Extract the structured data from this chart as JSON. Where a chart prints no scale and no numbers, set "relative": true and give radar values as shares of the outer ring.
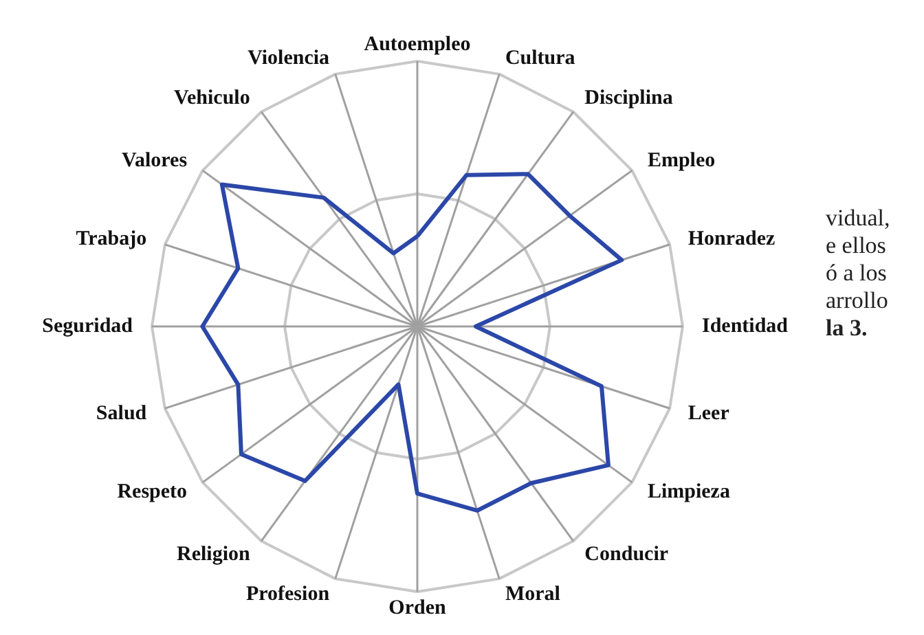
{
  "chart_data": {
    "type": "radar",
    "relative": true,
    "grid": true,
    "marker": "none",
    "line_style": "solid",
    "categories": [
      "Autoempleo",
      "Cultura",
      "Disciplina",
      "Empleo",
      "Honradez",
      "Identidad",
      "Leer",
      "Limpieza",
      "Conducir",
      "Moral",
      "Orden",
      "Profesion",
      "Religion",
      "Respeto",
      "Salud",
      "Seguridad",
      "Trabajo",
      "Valores",
      "Vehiculo",
      "Violencia"
    ],
    "series": [
      {
        "color": "#2b47a8",
        "values": [
          0.34,
          0.6,
          0.71,
          0.71,
          0.81,
          0.22,
          0.73,
          0.89,
          0.73,
          0.73,
          0.63,
          0.23,
          0.72,
          0.82,
          0.71,
          0.81,
          0.71,
          0.91,
          0.6,
          0.29
        ]
      }
    ],
    "annotations": [
      "vidual,",
      "e ellos",
      "ó a los",
      "arrollo",
      "la 3."
    ]
  }
}
